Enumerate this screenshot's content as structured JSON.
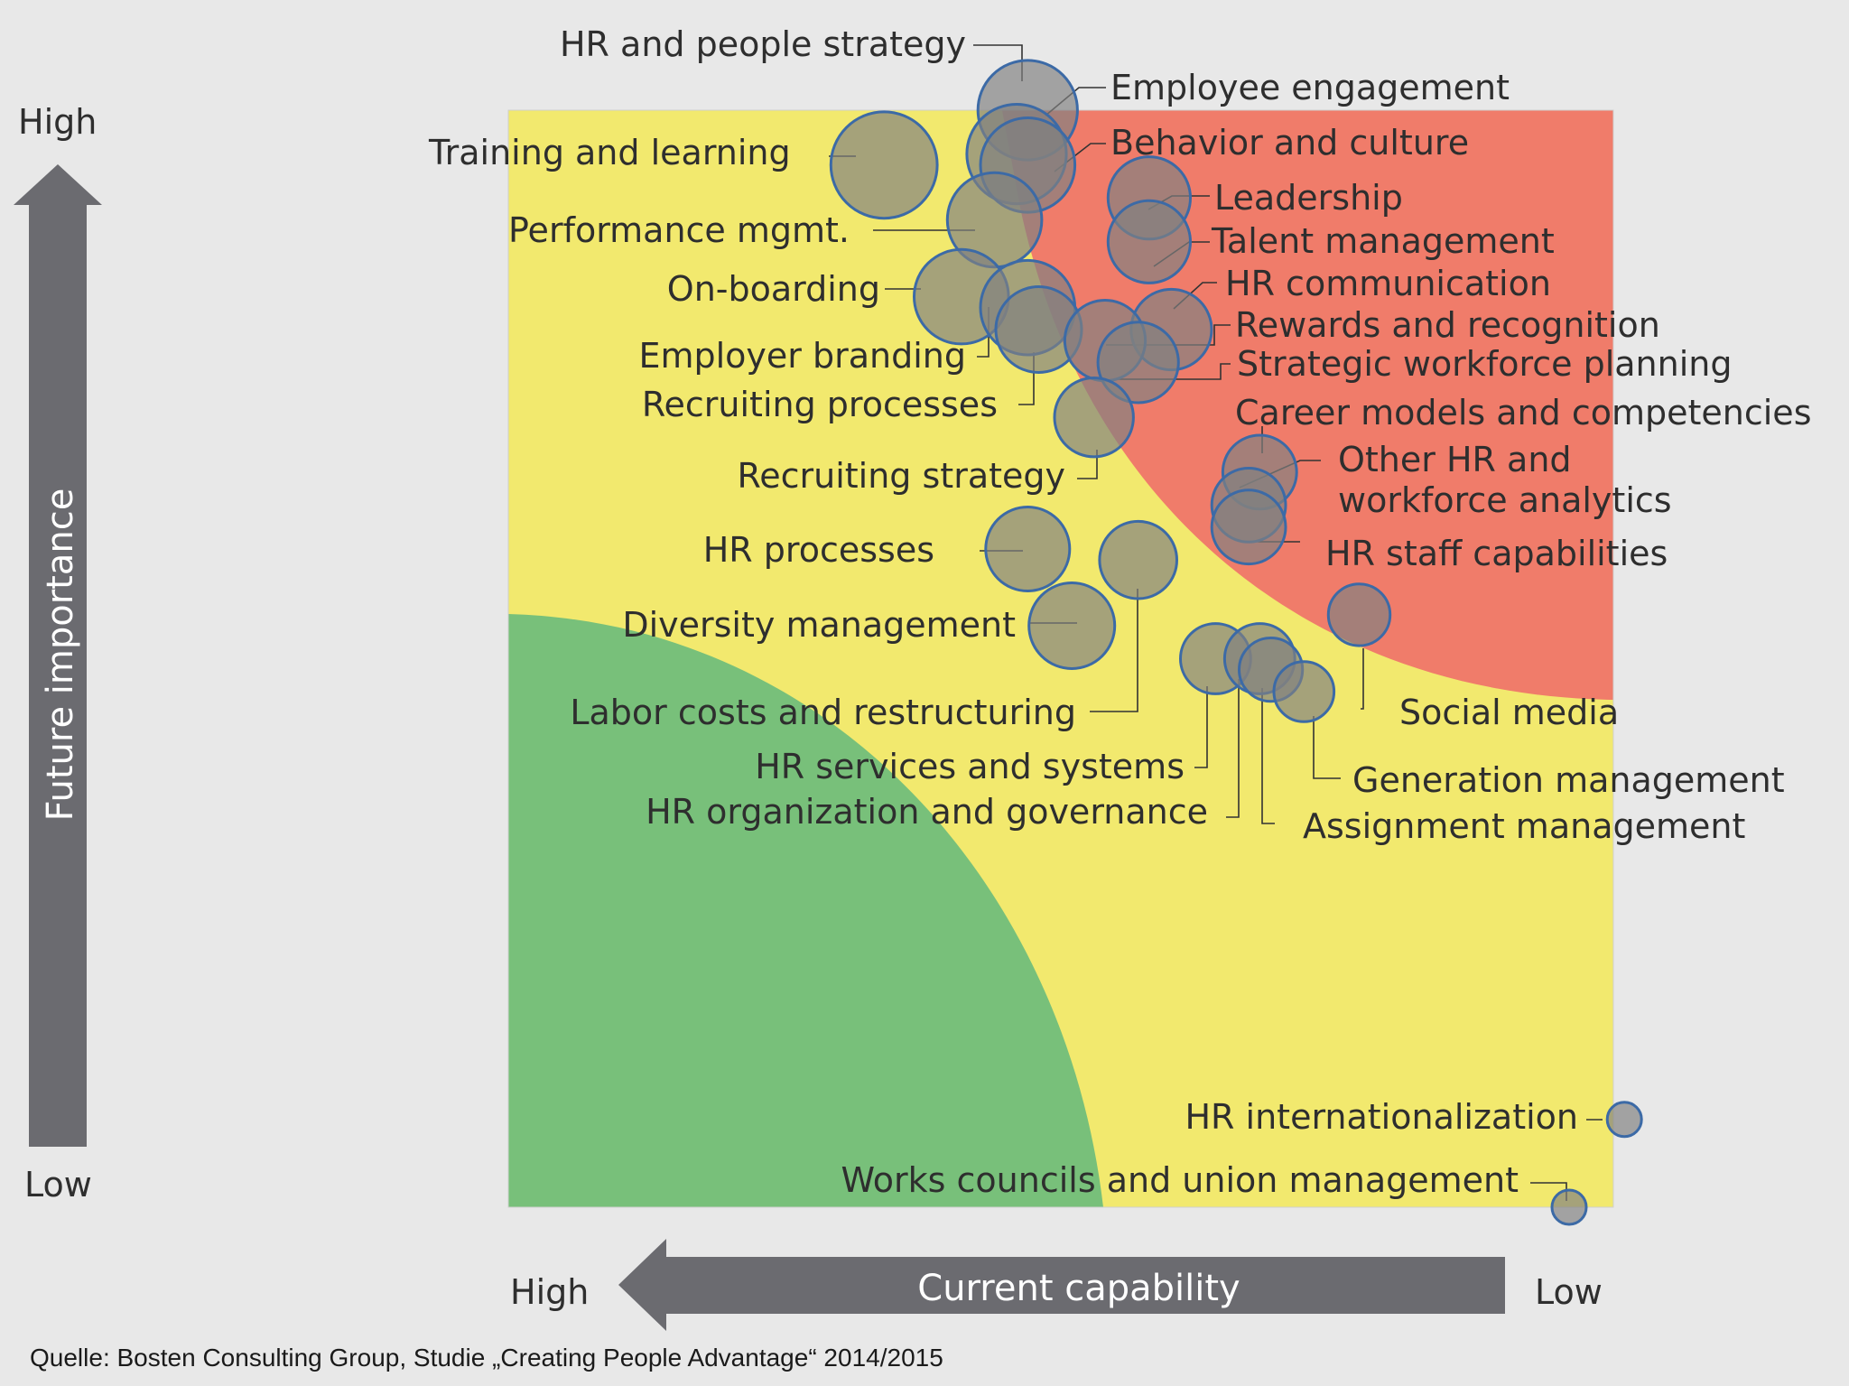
{
  "colors": {
    "background": "#e8e8e8",
    "zone_default": "#f2e96e",
    "zone_high_priority": "#f07c6a",
    "zone_strength": "#78c07a",
    "bubble_fill": "#808080",
    "bubble_stroke": "#3c6aa6",
    "arrow": "#6b6b70"
  },
  "y_axis": {
    "title": "Future importance",
    "high_label": "High",
    "low_label": "Low"
  },
  "x_axis": {
    "title": "Current capability",
    "high_label": "High",
    "low_label": "Low"
  },
  "source": "Quelle: Bosten Consulting Group, Studie „Creating People Advantage“ 2014/2015",
  "chart_data": {
    "type": "scatter",
    "title": "",
    "xlabel": "Current capability",
    "ylabel": "Future importance",
    "x_note": "Current capability: 0 = High (left), 100 = Low (right)",
    "y_note": "Future importance: 0 = Low (bottom), 100 = High (top)",
    "xlim": [
      0,
      100
    ],
    "ylim": [
      0,
      100
    ],
    "points": [
      {
        "name": "HR and people strategy",
        "x": 47,
        "y": 100,
        "size": 58
      },
      {
        "name": "Employee engagement",
        "x": 46,
        "y": 96,
        "size": 58
      },
      {
        "name": "Behavior and culture",
        "x": 47,
        "y": 95,
        "size": 55
      },
      {
        "name": "Training and learning",
        "x": 34,
        "y": 95,
        "size": 62
      },
      {
        "name": "Leadership",
        "x": 58,
        "y": 92,
        "size": 48
      },
      {
        "name": "Talent management",
        "x": 58,
        "y": 88,
        "size": 48
      },
      {
        "name": "Performance mgmt.",
        "x": 44,
        "y": 90,
        "size": 55
      },
      {
        "name": "On-boarding",
        "x": 41,
        "y": 83,
        "size": 55
      },
      {
        "name": "Employer branding",
        "x": 47,
        "y": 82,
        "size": 55
      },
      {
        "name": "Recruiting processes",
        "x": 48,
        "y": 80,
        "size": 50
      },
      {
        "name": "HR communication",
        "x": 60,
        "y": 80,
        "size": 47
      },
      {
        "name": "Rewards and recognition",
        "x": 54,
        "y": 79,
        "size": 47
      },
      {
        "name": "Strategic workforce planning",
        "x": 57,
        "y": 77,
        "size": 47
      },
      {
        "name": "Recruiting strategy",
        "x": 53,
        "y": 72,
        "size": 46
      },
      {
        "name": "Career models and competencies",
        "x": 68,
        "y": 67,
        "size": 43
      },
      {
        "name": "Other HR and workforce analytics",
        "x": 67,
        "y": 64,
        "size": 43
      },
      {
        "name": "HR staff capabilities",
        "x": 67,
        "y": 62,
        "size": 43
      },
      {
        "name": "HR processes",
        "x": 47,
        "y": 60,
        "size": 49
      },
      {
        "name": "Labor costs and restructuring",
        "x": 57,
        "y": 59,
        "size": 45
      },
      {
        "name": "Diversity management",
        "x": 51,
        "y": 53,
        "size": 50
      },
      {
        "name": "Social media",
        "x": 77,
        "y": 54,
        "size": 36
      },
      {
        "name": "HR services and systems",
        "x": 64,
        "y": 50,
        "size": 41
      },
      {
        "name": "HR organization and governance",
        "x": 68,
        "y": 50,
        "size": 41
      },
      {
        "name": "Assignment management",
        "x": 69,
        "y": 49,
        "size": 37
      },
      {
        "name": "Generation management",
        "x": 72,
        "y": 47,
        "size": 35
      },
      {
        "name": "HR internationalization",
        "x": 101,
        "y": 8,
        "size": 20
      },
      {
        "name": "Works councils and union management",
        "x": 96,
        "y": 0,
        "size": 20
      }
    ],
    "labels": {
      "hr_people_strategy": "HR and people strategy",
      "employee_engagement": "Employee engagement",
      "training_learning": "Training and learning",
      "behavior_culture": "Behavior and culture",
      "leadership": "Leadership",
      "performance_mgmt": "Performance mgmt.",
      "talent_management": "Talent management",
      "on_boarding": "On-boarding",
      "hr_communication": "HR communication",
      "rewards_recognition": "Rewards and recognition",
      "employer_branding": "Employer branding",
      "strategic_workforce_planning": "Strategic workforce planning",
      "recruiting_processes": "Recruiting processes",
      "career_models": "Career models and competencies",
      "other_hr_1": "Other HR and",
      "other_hr_2": "workforce analytics",
      "recruiting_strategy": "Recruiting strategy",
      "hr_processes": "HR processes",
      "hr_staff_capabilities": "HR staff capabilities",
      "diversity_management": "Diversity management",
      "labor_costs": "Labor costs and restructuring",
      "social_media": "Social media",
      "hr_services_systems": "HR services and systems",
      "generation_management": "Generation management",
      "hr_org_governance": "HR organization and governance",
      "assignment_management": "Assignment management",
      "hr_internationalization": "HR internationalization",
      "works_councils": "Works councils and union management"
    }
  }
}
